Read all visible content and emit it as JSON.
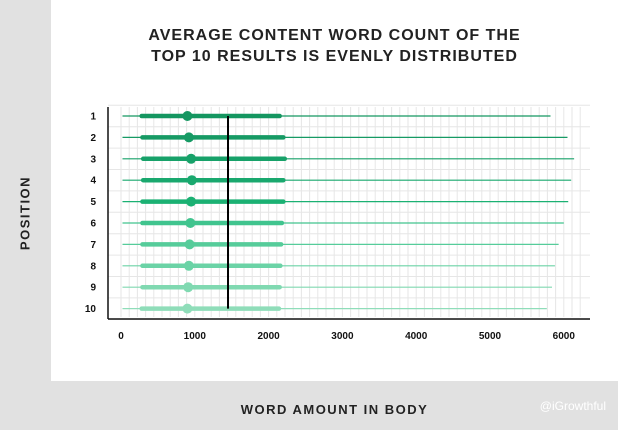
{
  "chart_data": {
    "type": "boxplot",
    "title_lines": [
      "AVERAGE CONTENT WORD COUNT OF THE",
      "TOP 10 RESULTS IS EVENLY DISTRIBUTED"
    ],
    "xlabel": "WORD AMOUNT IN BODY",
    "ylabel": "POSITION",
    "xlim": [
      0,
      6300
    ],
    "xticks": [
      0,
      1000,
      2000,
      3000,
      4000,
      5000,
      6000
    ],
    "categories": [
      "1",
      "2",
      "3",
      "4",
      "5",
      "6",
      "7",
      "8",
      "9",
      "10"
    ],
    "min": [
      20,
      20,
      20,
      20,
      20,
      20,
      20,
      20,
      20,
      20
    ],
    "q1": [
      280,
      290,
      300,
      300,
      290,
      290,
      290,
      290,
      290,
      280
    ],
    "median": [
      900,
      920,
      950,
      960,
      950,
      940,
      930,
      920,
      910,
      900
    ],
    "q3": [
      2150,
      2200,
      2220,
      2200,
      2200,
      2180,
      2170,
      2160,
      2150,
      2140
    ],
    "max": [
      5820,
      6050,
      6140,
      6100,
      6060,
      6000,
      5930,
      5880,
      5840,
      5770
    ],
    "mean_line": 1450,
    "colors": [
      "#149660",
      "#169a64",
      "#17a169",
      "#19a86e",
      "#1bb173",
      "#40c48e",
      "#56cc9a",
      "#6bd3a6",
      "#80d9b1",
      "#8fddb9"
    ],
    "grid": true
  },
  "watermark": "@iGrowthful"
}
